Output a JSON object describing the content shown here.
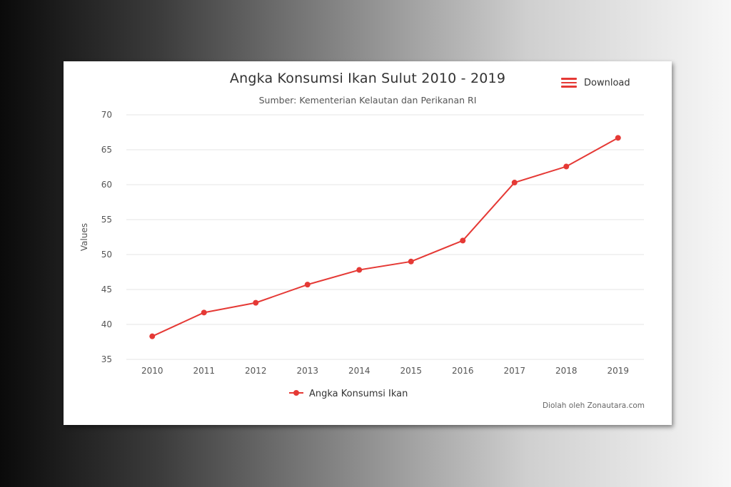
{
  "header": {
    "title": "Angka Konsumsi Ikan Sulut 2010 - 2019",
    "subtitle": "Sumber: Kementerian Kelautan dan Perikanan RI",
    "download_label": "Download",
    "download_icon": "menu-icon"
  },
  "footer": {
    "credit": "Diolah oleh Zonautara.com"
  },
  "colors": {
    "series": "#e53935",
    "grid": "#e6e6e6",
    "text": "#333333"
  },
  "chart_data": {
    "type": "line",
    "title": "Angka Konsumsi Ikan Sulut 2010 - 2019",
    "subtitle": "Sumber: Kementerian Kelautan dan Perikanan RI",
    "xlabel": "",
    "ylabel": "Values",
    "categories": [
      "2010",
      "2011",
      "2012",
      "2013",
      "2014",
      "2015",
      "2016",
      "2017",
      "2018",
      "2019"
    ],
    "series": [
      {
        "name": "Angka Konsumsi Ikan",
        "values": [
          38.3,
          41.7,
          43.1,
          45.7,
          47.8,
          49.0,
          52.0,
          60.3,
          62.6,
          66.7
        ]
      }
    ],
    "ylim": [
      35,
      70
    ],
    "yticks": [
      35,
      40,
      45,
      50,
      55,
      60,
      65,
      70
    ],
    "grid": true,
    "legend": "bottom-center"
  }
}
